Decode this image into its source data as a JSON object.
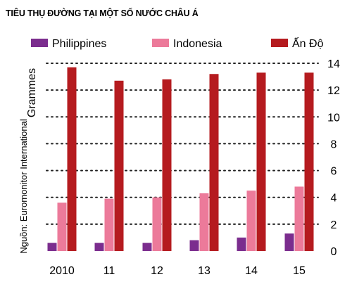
{
  "chart_data": {
    "type": "bar",
    "title": "TIÊU THỤ ĐƯỜNG TẠI MỘT SỐ NƯỚC CHÂU Á",
    "ylabel": "Grammes",
    "source": "Nguồn: Euromonitor International",
    "categories": [
      "2010",
      "11",
      "12",
      "13",
      "14",
      "15"
    ],
    "yticks": [
      0,
      2,
      4,
      6,
      8,
      10,
      12,
      14
    ],
    "ylim": [
      0,
      14
    ],
    "grid": "dotted-horizontal",
    "legend_position": "top",
    "series": [
      {
        "name": "Philippines",
        "color": "#7b2d8e",
        "values": [
          0.6,
          0.6,
          0.6,
          0.8,
          1.0,
          1.3
        ]
      },
      {
        "name": "Indonesia",
        "color": "#ec7a9a",
        "values": [
          3.6,
          3.9,
          4.0,
          4.3,
          4.5,
          4.8
        ]
      },
      {
        "name": "Ấn Độ",
        "color": "#b51b1f",
        "values": [
          13.7,
          12.7,
          12.8,
          13.2,
          13.3,
          13.3
        ]
      }
    ]
  }
}
